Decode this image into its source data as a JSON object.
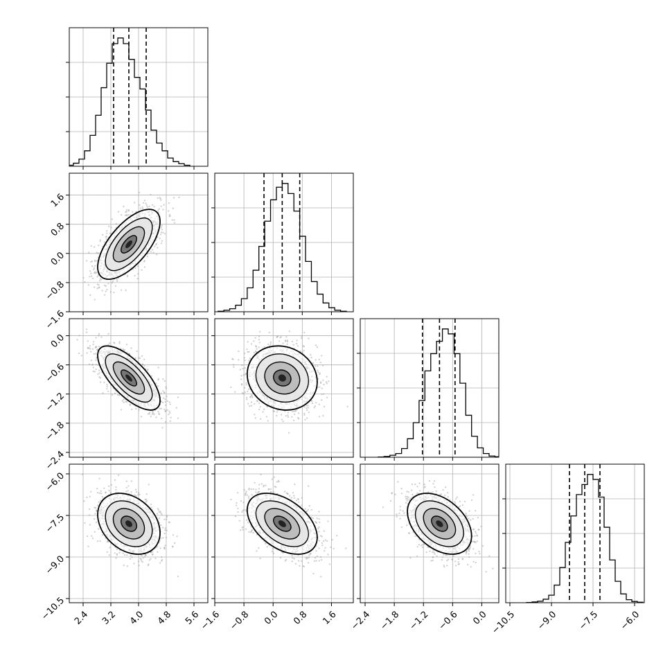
{
  "chart_data": {
    "type": "corner",
    "grid": true,
    "colors": {
      "hist": "#000000",
      "points": "#9a9a9a",
      "contour": "#000000",
      "grid": "#b0b0b0"
    },
    "parameters": [
      {
        "range": [
          2.0,
          6.0
        ],
        "ticks": [
          2.4,
          3.2,
          4.0,
          4.8,
          5.6
        ],
        "tick_labels": [
          "2.4",
          "3.2",
          "4.0",
          "4.8",
          "5.6"
        ],
        "quantiles": [
          3.28,
          3.72,
          4.22
        ],
        "mean": 3.72,
        "sd": 0.45,
        "hist_bin_width": 0.16,
        "hist_counts": [
          4,
          12,
          28,
          60,
          120,
          198,
          305,
          400,
          476,
          498,
          476,
          415,
          345,
          300,
          218,
          140,
          90,
          60,
          32,
          18,
          10,
          4
        ]
      },
      {
        "range": [
          -1.6,
          2.2
        ],
        "ticks": [
          -1.6,
          -0.8,
          0.0,
          0.8,
          1.6
        ],
        "tick_labels": [
          "−1.6",
          "−0.8",
          "0.0",
          "0.8",
          "1.6"
        ],
        "quantiles": [
          -0.25,
          0.25,
          0.73
        ],
        "mean": 0.25,
        "sd": 0.48,
        "hist_bin_width": 0.16,
        "hist_counts": [
          2,
          6,
          12,
          26,
          52,
          95,
          165,
          260,
          360,
          445,
          495,
          510,
          470,
          400,
          300,
          200,
          120,
          70,
          35,
          16,
          6,
          2
        ]
      },
      {
        "range": [
          -2.5,
          0.35
        ],
        "ticks": [
          -2.4,
          -1.8,
          -1.2,
          -0.6,
          0.0
        ],
        "tick_labels": [
          "−2.4",
          "−1.8",
          "−1.2",
          "−0.6",
          "0.0"
        ],
        "quantiles": [
          -1.22,
          -0.87,
          -0.55
        ],
        "mean": -0.87,
        "sd": 0.33,
        "hist_bin_width": 0.12,
        "hist_counts": [
          1,
          3,
          8,
          15,
          35,
          75,
          140,
          230,
          350,
          420,
          470,
          520,
          500,
          420,
          300,
          170,
          85,
          38,
          15,
          5,
          2
        ]
      },
      {
        "range": [
          -10.65,
          -5.65
        ],
        "ticks": [
          -10.5,
          -9.0,
          -7.5,
          -6.0
        ],
        "tick_labels": [
          "−10.5",
          "−9.0",
          "−7.5",
          "−6.0"
        ],
        "quantiles": [
          -8.35,
          -7.8,
          -7.25
        ],
        "mean": -7.8,
        "sd": 0.55,
        "hist_bin_width": 0.2,
        "hist_counts": [
          1,
          3,
          6,
          14,
          30,
          70,
          140,
          240,
          345,
          430,
          470,
          510,
          490,
          420,
          300,
          170,
          85,
          35,
          12,
          5,
          2
        ]
      }
    ],
    "correlations": [
      {
        "pair": [
          0,
          1
        ],
        "rho": 0.65
      },
      {
        "pair": [
          0,
          2
        ],
        "rho": -0.7
      },
      {
        "pair": [
          1,
          2
        ],
        "rho": -0.12
      },
      {
        "pair": [
          0,
          3
        ],
        "rho": -0.3
      },
      {
        "pair": [
          1,
          3
        ],
        "rho": -0.45
      },
      {
        "pair": [
          2,
          3
        ],
        "rho": -0.4
      }
    ]
  }
}
